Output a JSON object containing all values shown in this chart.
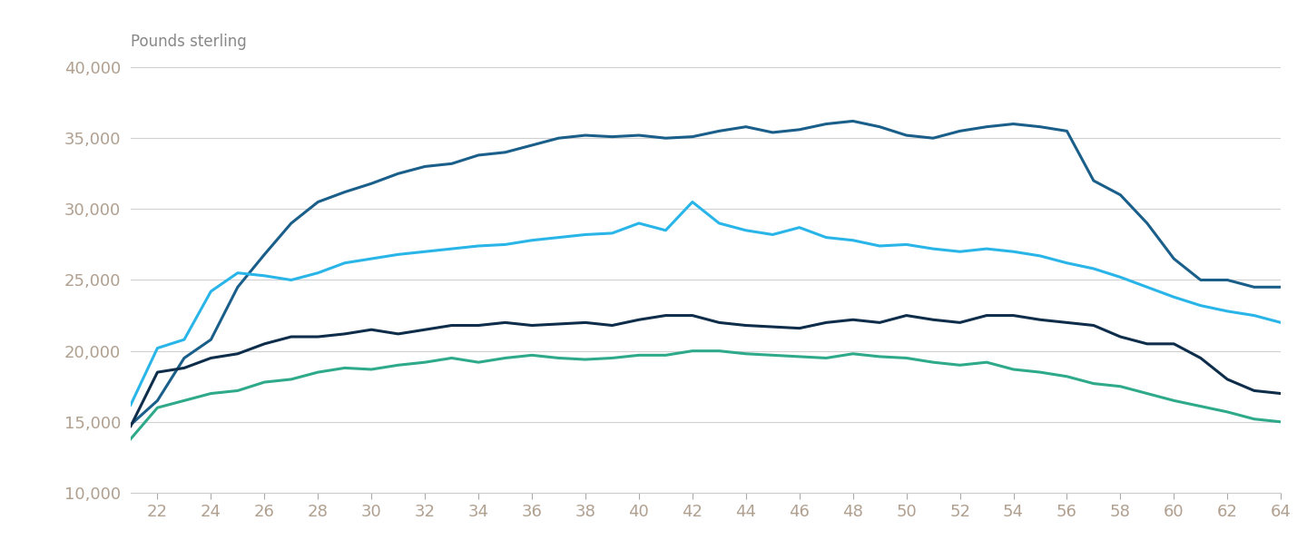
{
  "ages": [
    21,
    22,
    23,
    24,
    25,
    26,
    27,
    28,
    29,
    30,
    31,
    32,
    33,
    34,
    35,
    36,
    37,
    38,
    39,
    40,
    41,
    42,
    43,
    44,
    45,
    46,
    47,
    48,
    49,
    50,
    51,
    52,
    53,
    54,
    55,
    56,
    57,
    58,
    59,
    60,
    61,
    62,
    63,
    64
  ],
  "university": [
    14800,
    16500,
    19500,
    20800,
    24500,
    26800,
    29000,
    30500,
    31200,
    31800,
    32500,
    33000,
    33200,
    33800,
    34000,
    34500,
    35000,
    35200,
    35100,
    35200,
    35000,
    35100,
    35500,
    35800,
    35400,
    35600,
    36000,
    36200,
    35800,
    35200,
    35000,
    35500,
    35800,
    36000,
    35800,
    35500,
    32000,
    31000,
    29000,
    26500,
    25000,
    25000,
    24500,
    24500
  ],
  "apprenticeship": [
    16200,
    20200,
    20800,
    24200,
    25500,
    25300,
    25000,
    25500,
    26200,
    26500,
    26800,
    27000,
    27200,
    27400,
    27500,
    27800,
    28000,
    28200,
    28300,
    29000,
    28500,
    30500,
    29000,
    28500,
    28200,
    28700,
    28000,
    27800,
    27400,
    27500,
    27200,
    27000,
    27200,
    27000,
    26700,
    26200,
    25800,
    25200,
    24500,
    23800,
    23200,
    22800,
    22500,
    22000
  ],
  "a_level": [
    14700,
    18500,
    18800,
    19500,
    19800,
    20500,
    21000,
    21000,
    21200,
    21500,
    21200,
    21500,
    21800,
    21800,
    22000,
    21800,
    21900,
    22000,
    21800,
    22200,
    22500,
    22500,
    22000,
    21800,
    21700,
    21600,
    22000,
    22200,
    22000,
    22500,
    22200,
    22000,
    22500,
    22500,
    22200,
    22000,
    21800,
    21000,
    20500,
    20500,
    19500,
    18000,
    17200,
    17000
  ],
  "gcse": [
    13800,
    16000,
    16500,
    17000,
    17200,
    17800,
    18000,
    18500,
    18800,
    18700,
    19000,
    19200,
    19500,
    19200,
    19500,
    19700,
    19500,
    19400,
    19500,
    19700,
    19700,
    20000,
    20000,
    19800,
    19700,
    19600,
    19500,
    19800,
    19600,
    19500,
    19200,
    19000,
    19200,
    18700,
    18500,
    18200,
    17700,
    17500,
    17000,
    16500,
    16100,
    15700,
    15200,
    15000
  ],
  "university_color": "#1a5e8a",
  "apprenticeship_color": "#29b5e8",
  "a_level_color": "#0d2d4a",
  "gcse_color": "#2eaa8a",
  "ylabel": "Pounds sterling",
  "ylim": [
    10000,
    40000
  ],
  "xlim": [
    21,
    64
  ],
  "yticks": [
    10000,
    15000,
    20000,
    25000,
    30000,
    35000,
    40000
  ],
  "xticks": [
    22,
    24,
    26,
    28,
    30,
    32,
    34,
    36,
    38,
    40,
    42,
    44,
    46,
    48,
    50,
    52,
    54,
    56,
    58,
    60,
    62,
    64
  ],
  "grid_color": "#d0d0d0",
  "bg_color": "#ffffff",
  "line_width": 2.2,
  "tick_fontsize": 13,
  "ylabel_fontsize": 12
}
